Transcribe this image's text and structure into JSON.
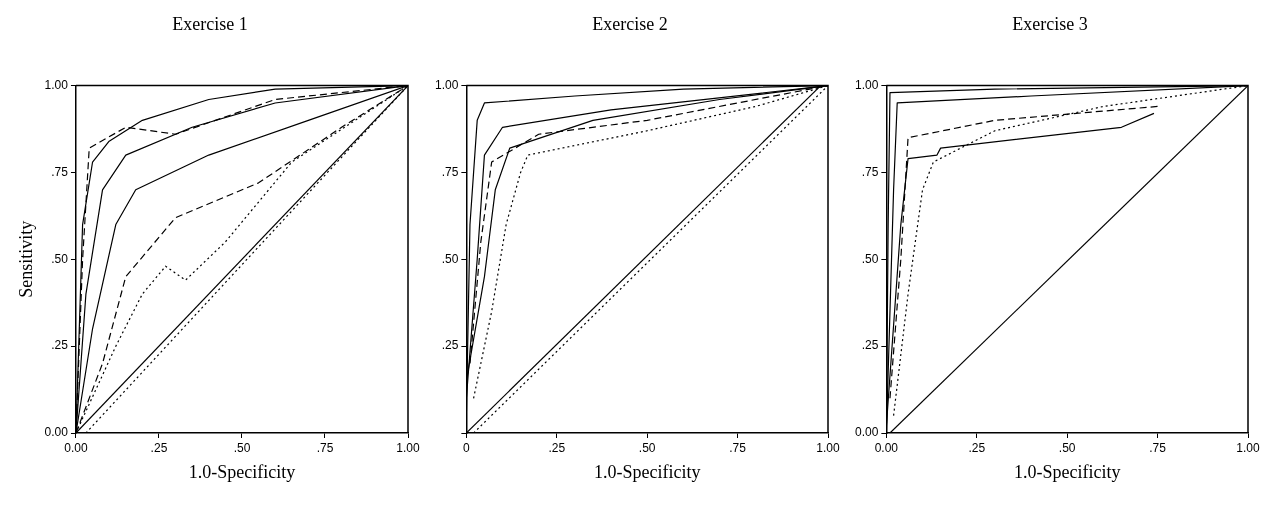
{
  "chart_data": [
    {
      "type": "line",
      "title": "Exercise 1",
      "xlabel": "1.0-Specificity",
      "ylabel": "Sensitivity",
      "xlim": [
        0,
        1
      ],
      "ylim": [
        0,
        1
      ],
      "xticks": [
        {
          "value": 0,
          "label": "0.00"
        },
        {
          "value": 0.25,
          "label": ".25"
        },
        {
          "value": 0.5,
          "label": ".50"
        },
        {
          "value": 0.75,
          "label": ".75"
        },
        {
          "value": 1,
          "label": "1.00"
        }
      ],
      "yticks": [
        {
          "value": 0,
          "label": "0.00"
        },
        {
          "value": 0.25,
          "label": ".25"
        },
        {
          "value": 0.5,
          "label": ".50"
        },
        {
          "value": 0.75,
          "label": ".75"
        },
        {
          "value": 1,
          "label": "1.00"
        }
      ],
      "grid": false,
      "legend": false,
      "marker": "none",
      "series": [
        {
          "color": "#000000",
          "line_style": "solid",
          "x": [
            0,
            0.02,
            0.05,
            0.1,
            0.2,
            0.4,
            0.6,
            1
          ],
          "values": [
            0,
            0.6,
            0.78,
            0.84,
            0.9,
            0.96,
            0.99,
            1
          ]
        },
        {
          "color": "#000000",
          "line_style": "solid",
          "x": [
            0,
            0.03,
            0.08,
            0.15,
            0.35,
            0.6,
            1
          ],
          "values": [
            0,
            0.4,
            0.7,
            0.8,
            0.88,
            0.95,
            1
          ]
        },
        {
          "color": "#000000",
          "line_style": "solid",
          "x": [
            0,
            0.05,
            0.12,
            0.18,
            0.4,
            0.7,
            1
          ],
          "values": [
            0,
            0.3,
            0.6,
            0.7,
            0.8,
            0.9,
            1
          ]
        },
        {
          "color": "#000000",
          "line_style": "dashed",
          "x": [
            0,
            0.08,
            0.15,
            0.3,
            0.55,
            0.8,
            1
          ],
          "values": [
            0,
            0.2,
            0.45,
            0.62,
            0.72,
            0.88,
            1
          ]
        },
        {
          "color": "#000000",
          "line_style": "dotted",
          "x": [
            0,
            0.12,
            0.2,
            0.27,
            0.33,
            0.45,
            0.65,
            1
          ],
          "values": [
            0,
            0.25,
            0.4,
            0.48,
            0.44,
            0.55,
            0.78,
            1
          ]
        },
        {
          "color": "#000000",
          "line_style": "dashed",
          "x": [
            0,
            0.02,
            0.04,
            0.15,
            0.3,
            0.6,
            1
          ],
          "values": [
            0,
            0.5,
            0.82,
            0.88,
            0.86,
            0.96,
            1
          ]
        },
        {
          "color": "#000000",
          "line_style": "solid",
          "x": [
            0,
            1
          ],
          "values": [
            0,
            1
          ]
        },
        {
          "color": "#000000",
          "line_style": "dotted",
          "x": [
            0.03,
            1
          ],
          "values": [
            0,
            1
          ]
        }
      ]
    },
    {
      "type": "line",
      "title": "Exercise 2",
      "xlabel": "1.0-Specificity",
      "xlim": [
        0,
        1
      ],
      "ylim": [
        0,
        1
      ],
      "xticks": [
        {
          "value": 0,
          "label": "0"
        },
        {
          "value": 0.25,
          "label": ".25"
        },
        {
          "value": 0.5,
          "label": ".50"
        },
        {
          "value": 0.75,
          "label": ".75"
        },
        {
          "value": 1,
          "label": "1.00"
        }
      ],
      "yticks": [
        {
          "value": 0,
          "label": null
        },
        {
          "value": 0.25,
          "label": ".25"
        },
        {
          "value": 0.5,
          "label": ".50"
        },
        {
          "value": 0.75,
          "label": ".75"
        },
        {
          "value": 1,
          "label": "1.00"
        }
      ],
      "grid": false,
      "legend": false,
      "marker": "none",
      "series": [
        {
          "color": "#000000",
          "line_style": "solid",
          "x": [
            0,
            0.01,
            0.03,
            0.05,
            0.3,
            0.6,
            1
          ],
          "values": [
            0.05,
            0.6,
            0.9,
            0.95,
            0.97,
            0.99,
            1
          ]
        },
        {
          "color": "#000000",
          "line_style": "solid",
          "x": [
            0,
            0.03,
            0.05,
            0.1,
            0.4,
            1
          ],
          "values": [
            0.1,
            0.5,
            0.8,
            0.88,
            0.93,
            1
          ]
        },
        {
          "color": "#000000",
          "line_style": "solid",
          "x": [
            0,
            0.05,
            0.08,
            0.12,
            0.35,
            0.7,
            1
          ],
          "values": [
            0.15,
            0.45,
            0.7,
            0.82,
            0.9,
            0.96,
            1
          ]
        },
        {
          "color": "#000000",
          "line_style": "dotted",
          "x": [
            0.02,
            0.07,
            0.11,
            0.15,
            0.17,
            0.5,
            0.8,
            1
          ],
          "values": [
            0.1,
            0.35,
            0.6,
            0.75,
            0.8,
            0.87,
            0.94,
            1
          ]
        },
        {
          "color": "#000000",
          "line_style": "dashed",
          "x": [
            0.01,
            0.04,
            0.07,
            0.2,
            0.5,
            1
          ],
          "values": [
            0.2,
            0.55,
            0.78,
            0.86,
            0.9,
            1
          ]
        },
        {
          "color": "#000000",
          "line_style": "solid",
          "x": [
            0,
            0.98
          ],
          "values": [
            0,
            1
          ]
        },
        {
          "color": "#000000",
          "line_style": "dotted",
          "x": [
            0.02,
            1
          ],
          "values": [
            0,
            1
          ]
        }
      ]
    },
    {
      "type": "line",
      "title": "Exercise 3",
      "xlabel": "1.0-Specificity",
      "xlim": [
        0,
        1
      ],
      "ylim": [
        0,
        1
      ],
      "xticks": [
        {
          "value": 0,
          "label": "0.00"
        },
        {
          "value": 0.25,
          "label": ".25"
        },
        {
          "value": 0.5,
          "label": ".50"
        },
        {
          "value": 0.75,
          "label": ".75"
        },
        {
          "value": 1,
          "label": "1.00"
        }
      ],
      "yticks": [
        {
          "value": 0,
          "label": "0.00"
        },
        {
          "value": 0.25,
          "label": ".25"
        },
        {
          "value": 0.5,
          "label": ".50"
        },
        {
          "value": 0.75,
          "label": ".75"
        },
        {
          "value": 1,
          "label": "1.00"
        }
      ],
      "grid": false,
      "legend": false,
      "marker": "none",
      "series": [
        {
          "color": "#000000",
          "line_style": "solid",
          "x": [
            0,
            0.005,
            0.01,
            0.3,
            1
          ],
          "values": [
            0,
            0.6,
            0.98,
            0.99,
            1
          ]
        },
        {
          "color": "#000000",
          "line_style": "solid",
          "x": [
            0,
            0.02,
            0.03,
            0.4,
            1
          ],
          "values": [
            0,
            0.7,
            0.95,
            0.97,
            1
          ]
        },
        {
          "color": "#000000",
          "line_style": "solid",
          "x": [
            0,
            0.04,
            0.06,
            0.14,
            0.15,
            0.65,
            0.74
          ],
          "values": [
            0.02,
            0.6,
            0.79,
            0.8,
            0.82,
            0.88,
            0.92
          ]
        },
        {
          "color": "#000000",
          "line_style": "dotted",
          "x": [
            0.02,
            0.06,
            0.1,
            0.13,
            0.3,
            0.6,
            1
          ],
          "values": [
            0.05,
            0.4,
            0.7,
            0.78,
            0.87,
            0.94,
            1
          ]
        },
        {
          "color": "#000000",
          "line_style": "dashed",
          "x": [
            0.01,
            0.04,
            0.06,
            0.3,
            0.75
          ],
          "values": [
            0.1,
            0.5,
            0.85,
            0.9,
            0.94
          ]
        },
        {
          "color": "#000000",
          "line_style": "solid",
          "x": [
            0.01,
            1
          ],
          "values": [
            0,
            1
          ]
        }
      ]
    }
  ]
}
